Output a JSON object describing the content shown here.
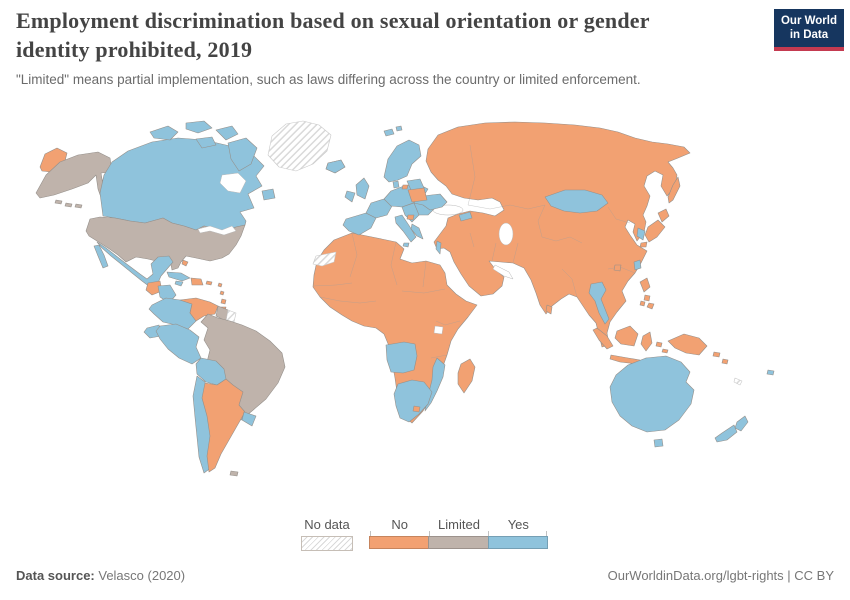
{
  "header": {
    "title": "Employment discrimination based on sexual orientation or gender identity prohibited, 2019",
    "subtitle": "\"Limited\" means partial implementation, such as laws differing across the country or limited enforcement.",
    "logo": {
      "line1": "Our World",
      "line2": "in Data",
      "bg": "#16365f",
      "accent": "#c43a50"
    }
  },
  "legend": {
    "no_data_label": "No data",
    "categories": [
      {
        "key": "no",
        "label": "No",
        "color": "#F2A172"
      },
      {
        "key": "limited",
        "label": "Limited",
        "color": "#BFB3AB"
      },
      {
        "key": "yes",
        "label": "Yes",
        "color": "#8FC3DC"
      }
    ]
  },
  "footer": {
    "source_label": "Data source:",
    "source_value": " Velasco (2020)",
    "credit": "OurWorldinData.org/lgbt-rights | CC BY"
  },
  "chart_data": {
    "type": "choropleth_map",
    "title": "Employment discrimination based on sexual orientation or gender identity prohibited",
    "year": 2019,
    "categories": [
      "No data",
      "No",
      "Limited",
      "Yes"
    ],
    "legend_position": "bottom-center",
    "regions": {
      "russia_west_tip": "no",
      "alaska": "limited",
      "aleutians": "limited",
      "canada": "yes",
      "canada_islands": "yes",
      "hudson_bay": "water",
      "usa": "limited",
      "great_lakes": "water",
      "bahamas": "no",
      "mexico": "yes",
      "guatemala": "no",
      "honduras_nicaragua": "yes",
      "costa_rica": "no",
      "panama": "yes",
      "cuba": "yes",
      "jamaica": "yes",
      "hispaniola": "no",
      "puerto_rico": "no",
      "lesser_antilles": "no",
      "colombia": "yes",
      "venezuela": "no",
      "guyana": "limited",
      "suriname": "no_data",
      "brazil": "limited",
      "ecuador": "yes",
      "peru": "yes",
      "bolivia": "yes",
      "chile": "yes",
      "argentina": "no",
      "uruguay": "yes",
      "falkland_islands": "limited",
      "greenland": "no_data",
      "iceland": "yes",
      "nordics": "yes",
      "denmark": "yes",
      "uk": "yes",
      "ireland": "yes",
      "iberia": "yes",
      "france": "yes",
      "central_europe": "yes",
      "italy": "yes",
      "balkans": "yes",
      "greece": "yes",
      "romania_bulgaria": "yes",
      "ukraine": "yes",
      "baltics": "yes",
      "svalbard": "yes",
      "belarus": "no",
      "kaliningrad": "no",
      "north_macedonia": "no",
      "eurasia_mainland": "no",
      "black_sea": "water",
      "caspian_sea": "water",
      "persian_gulf": "water",
      "lake_victoria": "water",
      "georgia": "yes",
      "israel": "yes",
      "mongolia": "yes",
      "thailand": "yes",
      "south_korea": "yes",
      "taiwan": "yes",
      "hainan": "no",
      "japan": "no",
      "sakhalin": "no",
      "philippines": "no",
      "sri_lanka": "no",
      "indonesia": "no",
      "new_guinea": "no",
      "solomon_islands": "no",
      "new_caledonia": "no_data",
      "australia": "yes",
      "tasmania": "yes",
      "new_zealand": "yes",
      "fiji": "yes",
      "africa_mainland": "no",
      "western_sahara": "no_data",
      "angola": "yes",
      "mozambique": "yes",
      "south_africa": "yes",
      "lesotho": "no",
      "madagascar": "no",
      "internal_borders": "border"
    }
  }
}
